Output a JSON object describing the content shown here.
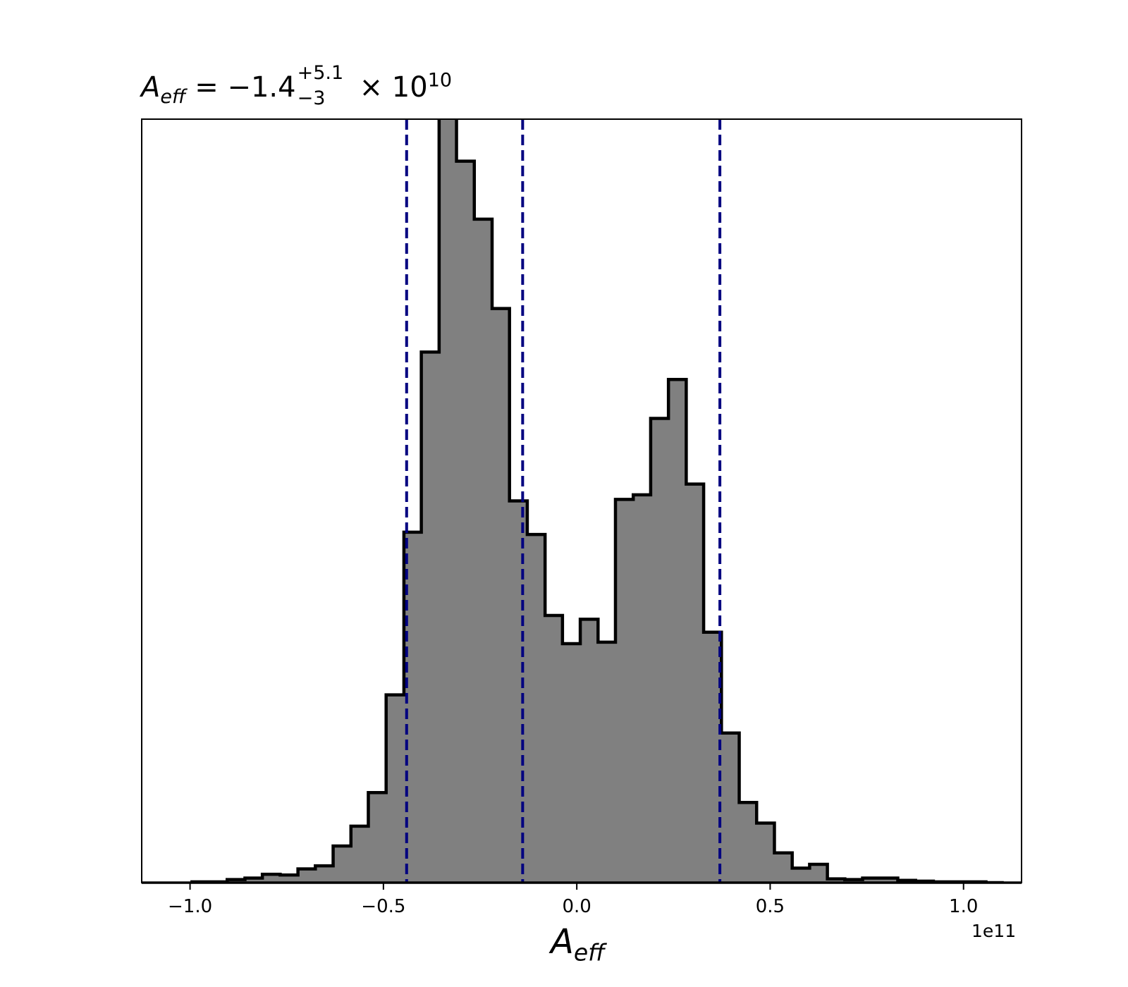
{
  "title": {
    "symbol": "A",
    "subscript": "eff",
    "equals": " = ",
    "median": "−1.4",
    "upper": "+5.1",
    "lower": "−3",
    "times": "× 10",
    "exponent": "10"
  },
  "colors": {
    "fill": "#808080",
    "edge": "#000000",
    "quantile_line": "#000080"
  },
  "chart_data": {
    "type": "bar",
    "subtype": "histogram-step-filled",
    "xlabel": "A_eff",
    "xlabel_symbol": "A",
    "xlabel_subscript": "eff",
    "x_offset_label": "1e11",
    "xlim": [
      -1.125,
      1.15
    ],
    "ylim": [
      0,
      1000
    ],
    "y_ticks_shown": false,
    "grid": false,
    "legend": "none",
    "x_ticks": [
      {
        "value": -1.0,
        "label": "−1.0"
      },
      {
        "value": -0.5,
        "label": "−0.5"
      },
      {
        "value": 0.0,
        "label": "0.0"
      },
      {
        "value": 0.5,
        "label": "0.5"
      },
      {
        "value": 1.0,
        "label": "1.0"
      }
    ],
    "bin_edges": [
      -0.995,
      -0.949,
      -0.904,
      -0.858,
      -0.813,
      -0.767,
      -0.721,
      -0.676,
      -0.63,
      -0.584,
      -0.539,
      -0.493,
      -0.447,
      -0.402,
      -0.356,
      -0.311,
      -0.265,
      -0.219,
      -0.174,
      -0.128,
      -0.082,
      -0.037,
      0.009,
      0.055,
      0.1,
      0.146,
      0.191,
      0.237,
      0.283,
      0.328,
      0.374,
      0.42,
      0.465,
      0.511,
      0.557,
      0.602,
      0.648,
      0.693,
      0.739,
      0.785,
      0.83,
      0.876,
      0.922,
      0.967,
      1.013,
      1.058,
      1.104
    ],
    "counts": [
      1,
      1,
      4,
      6,
      11,
      10,
      18,
      22,
      48,
      74,
      118,
      246,
      459,
      695,
      1003,
      945,
      869,
      752,
      500,
      456,
      350,
      313,
      345,
      315,
      502,
      508,
      608,
      659,
      522,
      328,
      196,
      105,
      78,
      39,
      19,
      24,
      5,
      4,
      6,
      6,
      3,
      2,
      1,
      1,
      1,
      0
    ],
    "quantile_lines": [
      -0.44,
      -0.14,
      0.37
    ]
  }
}
